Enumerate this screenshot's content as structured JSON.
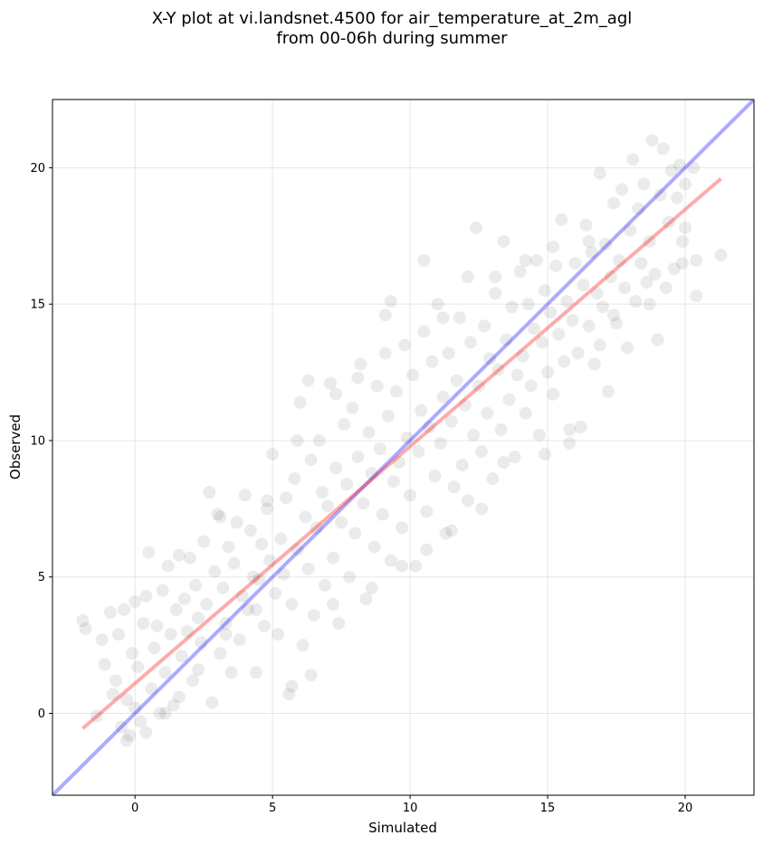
{
  "chart_data": {
    "type": "scatter",
    "title": "X-Y plot at vi.landsnet.4500 for air_temperature_at_2m_agl",
    "subtitle": "from 00-06h during summer",
    "xlabel": "Simulated",
    "ylabel": "Observed",
    "xlim": [
      -3.0,
      22.5
    ],
    "ylim": [
      -3.0,
      22.5
    ],
    "xticks": [
      0,
      5,
      10,
      15,
      20
    ],
    "yticks": [
      0,
      5,
      10,
      15,
      20
    ],
    "grid": true,
    "point_color": "#000000",
    "point_alpha": 0.08,
    "one_to_one_line": {
      "color": "#0000ff",
      "alpha": 0.33,
      "from": [
        -3.0,
        -3.0
      ],
      "to": [
        22.5,
        22.5
      ]
    },
    "regression_line": {
      "color": "#ff0000",
      "alpha": 0.33,
      "from": [
        -1.9,
        -0.55
      ],
      "to": [
        21.3,
        19.6
      ]
    },
    "points": [
      [
        -1.9,
        3.4
      ],
      [
        -1.8,
        3.1
      ],
      [
        -1.4,
        -0.1
      ],
      [
        -1.2,
        2.7
      ],
      [
        -1.1,
        1.8
      ],
      [
        -0.9,
        3.7
      ],
      [
        -0.8,
        0.7
      ],
      [
        -0.7,
        1.2
      ],
      [
        -0.6,
        2.9
      ],
      [
        -0.5,
        -0.5
      ],
      [
        -0.4,
        3.8
      ],
      [
        -0.3,
        0.5
      ],
      [
        -0.2,
        -0.8
      ],
      [
        -0.1,
        2.2
      ],
      [
        0.0,
        4.1
      ],
      [
        0.0,
        0.2
      ],
      [
        0.1,
        1.7
      ],
      [
        0.2,
        -0.3
      ],
      [
        0.3,
        3.3
      ],
      [
        0.4,
        4.3
      ],
      [
        0.5,
        5.9
      ],
      [
        0.6,
        0.9
      ],
      [
        0.7,
        2.4
      ],
      [
        0.8,
        3.2
      ],
      [
        0.9,
        0.0
      ],
      [
        1.0,
        4.5
      ],
      [
        1.1,
        1.5
      ],
      [
        1.2,
        5.4
      ],
      [
        1.3,
        2.9
      ],
      [
        1.4,
        0.3
      ],
      [
        1.5,
        3.8
      ],
      [
        1.6,
        5.8
      ],
      [
        1.7,
        2.1
      ],
      [
        1.8,
        4.2
      ],
      [
        1.9,
        3.0
      ],
      [
        2.0,
        5.7
      ],
      [
        2.1,
        1.2
      ],
      [
        2.2,
        4.7
      ],
      [
        2.3,
        3.5
      ],
      [
        2.4,
        2.6
      ],
      [
        2.5,
        6.3
      ],
      [
        2.6,
        4.0
      ],
      [
        2.7,
        8.1
      ],
      [
        2.8,
        0.4
      ],
      [
        2.9,
        5.2
      ],
      [
        3.0,
        7.3
      ],
      [
        3.1,
        2.2
      ],
      [
        3.2,
        4.6
      ],
      [
        3.3,
        3.3
      ],
      [
        3.4,
        6.1
      ],
      [
        3.5,
        1.5
      ],
      [
        3.6,
        5.5
      ],
      [
        3.7,
        7.0
      ],
      [
        3.8,
        2.7
      ],
      [
        3.9,
        4.3
      ],
      [
        4.0,
        8.0
      ],
      [
        4.1,
        3.8
      ],
      [
        4.2,
        6.7
      ],
      [
        4.3,
        5.0
      ],
      [
        4.4,
        1.5
      ],
      [
        4.5,
        4.9
      ],
      [
        4.6,
        6.2
      ],
      [
        4.7,
        3.2
      ],
      [
        4.8,
        7.5
      ],
      [
        4.9,
        5.6
      ],
      [
        5.0,
        9.5
      ],
      [
        5.1,
        4.4
      ],
      [
        5.2,
        2.9
      ],
      [
        5.3,
        6.4
      ],
      [
        5.4,
        5.1
      ],
      [
        5.5,
        7.9
      ],
      [
        5.6,
        0.7
      ],
      [
        5.7,
        4.0
      ],
      [
        5.8,
        8.6
      ],
      [
        5.9,
        6.0
      ],
      [
        6.0,
        11.4
      ],
      [
        6.1,
        2.5
      ],
      [
        6.2,
        7.2
      ],
      [
        6.3,
        5.3
      ],
      [
        6.4,
        9.3
      ],
      [
        6.5,
        3.6
      ],
      [
        6.6,
        6.8
      ],
      [
        6.7,
        10.0
      ],
      [
        6.8,
        8.1
      ],
      [
        6.9,
        4.7
      ],
      [
        7.0,
        7.6
      ],
      [
        7.1,
        12.1
      ],
      [
        7.2,
        5.7
      ],
      [
        7.3,
        9.0
      ],
      [
        7.4,
        3.3
      ],
      [
        7.5,
        7.0
      ],
      [
        7.6,
        10.6
      ],
      [
        7.7,
        8.4
      ],
      [
        7.8,
        5.0
      ],
      [
        7.9,
        11.2
      ],
      [
        8.0,
        6.6
      ],
      [
        8.1,
        9.4
      ],
      [
        8.2,
        12.8
      ],
      [
        8.3,
        7.7
      ],
      [
        8.4,
        4.2
      ],
      [
        8.5,
        10.3
      ],
      [
        8.6,
        8.8
      ],
      [
        8.7,
        6.1
      ],
      [
        8.8,
        12.0
      ],
      [
        8.9,
        9.7
      ],
      [
        9.0,
        7.3
      ],
      [
        9.1,
        14.6
      ],
      [
        9.2,
        10.9
      ],
      [
        9.3,
        5.6
      ],
      [
        9.4,
        8.5
      ],
      [
        9.5,
        11.8
      ],
      [
        9.6,
        9.2
      ],
      [
        9.7,
        6.8
      ],
      [
        9.8,
        13.5
      ],
      [
        9.9,
        10.1
      ],
      [
        10.0,
        8.0
      ],
      [
        10.1,
        12.4
      ],
      [
        10.2,
        5.4
      ],
      [
        10.3,
        9.6
      ],
      [
        10.4,
        11.1
      ],
      [
        10.5,
        14.0
      ],
      [
        10.6,
        7.4
      ],
      [
        10.7,
        10.5
      ],
      [
        10.8,
        12.9
      ],
      [
        10.9,
        8.7
      ],
      [
        11.0,
        15.0
      ],
      [
        11.1,
        9.9
      ],
      [
        11.2,
        11.6
      ],
      [
        11.3,
        6.6
      ],
      [
        11.4,
        13.2
      ],
      [
        11.5,
        10.7
      ],
      [
        11.6,
        8.3
      ],
      [
        11.7,
        12.2
      ],
      [
        11.8,
        14.5
      ],
      [
        11.9,
        9.1
      ],
      [
        12.0,
        11.3
      ],
      [
        12.1,
        7.8
      ],
      [
        12.2,
        13.6
      ],
      [
        12.3,
        10.2
      ],
      [
        12.4,
        17.8
      ],
      [
        12.5,
        12.0
      ],
      [
        12.6,
        9.6
      ],
      [
        12.7,
        14.2
      ],
      [
        12.8,
        11.0
      ],
      [
        12.9,
        13.0
      ],
      [
        13.0,
        8.6
      ],
      [
        13.1,
        15.4
      ],
      [
        13.2,
        12.6
      ],
      [
        13.3,
        10.4
      ],
      [
        13.4,
        17.3
      ],
      [
        13.5,
        13.7
      ],
      [
        13.6,
        11.5
      ],
      [
        13.7,
        14.9
      ],
      [
        13.8,
        9.4
      ],
      [
        13.9,
        12.4
      ],
      [
        14.0,
        16.2
      ],
      [
        14.1,
        13.1
      ],
      [
        14.2,
        11.0
      ],
      [
        14.3,
        15.0
      ],
      [
        14.4,
        12.0
      ],
      [
        14.5,
        14.1
      ],
      [
        14.6,
        16.6
      ],
      [
        14.7,
        10.2
      ],
      [
        14.8,
        13.6
      ],
      [
        14.9,
        15.5
      ],
      [
        15.0,
        12.5
      ],
      [
        15.1,
        14.7
      ],
      [
        15.2,
        11.7
      ],
      [
        15.3,
        16.4
      ],
      [
        15.4,
        13.9
      ],
      [
        15.5,
        18.1
      ],
      [
        15.6,
        12.9
      ],
      [
        15.7,
        15.1
      ],
      [
        15.8,
        9.9
      ],
      [
        15.9,
        14.4
      ],
      [
        16.0,
        16.5
      ],
      [
        16.1,
        13.2
      ],
      [
        16.2,
        10.5
      ],
      [
        16.3,
        15.7
      ],
      [
        16.4,
        17.9
      ],
      [
        16.5,
        14.2
      ],
      [
        16.6,
        16.9
      ],
      [
        16.7,
        12.8
      ],
      [
        16.8,
        15.4
      ],
      [
        16.9,
        19.8
      ],
      [
        17.0,
        14.9
      ],
      [
        17.1,
        17.2
      ],
      [
        17.2,
        11.8
      ],
      [
        17.3,
        16.0
      ],
      [
        17.4,
        18.7
      ],
      [
        17.5,
        14.3
      ],
      [
        17.6,
        16.6
      ],
      [
        17.7,
        19.2
      ],
      [
        17.8,
        15.6
      ],
      [
        17.9,
        13.4
      ],
      [
        18.0,
        17.7
      ],
      [
        18.1,
        20.3
      ],
      [
        18.2,
        15.1
      ],
      [
        18.3,
        18.5
      ],
      [
        18.4,
        16.5
      ],
      [
        18.5,
        19.4
      ],
      [
        18.6,
        15.8
      ],
      [
        18.7,
        17.3
      ],
      [
        18.8,
        21.0
      ],
      [
        18.9,
        16.1
      ],
      [
        19.0,
        13.7
      ],
      [
        19.1,
        19.0
      ],
      [
        19.2,
        20.7
      ],
      [
        19.3,
        15.6
      ],
      [
        19.4,
        18.0
      ],
      [
        19.5,
        19.9
      ],
      [
        19.6,
        16.3
      ],
      [
        19.7,
        18.9
      ],
      [
        19.8,
        20.1
      ],
      [
        19.9,
        17.3
      ],
      [
        20.0,
        19.4
      ],
      [
        20.3,
        20.0
      ],
      [
        20.4,
        15.3
      ],
      [
        20.4,
        16.6
      ],
      [
        21.3,
        16.8
      ],
      [
        19.9,
        16.5
      ],
      [
        20.0,
        17.8
      ],
      [
        -0.3,
        -1.0
      ],
      [
        0.4,
        -0.7
      ],
      [
        1.1,
        0.0
      ],
      [
        1.6,
        0.6
      ],
      [
        2.3,
        1.6
      ],
      [
        3.3,
        2.9
      ],
      [
        4.4,
        3.8
      ],
      [
        5.7,
        1.0
      ],
      [
        6.4,
        1.4
      ],
      [
        7.2,
        4.0
      ],
      [
        8.6,
        4.6
      ],
      [
        9.7,
        5.4
      ],
      [
        10.6,
        6.0
      ],
      [
        11.5,
        6.7
      ],
      [
        12.6,
        7.5
      ],
      [
        13.4,
        9.2
      ],
      [
        14.9,
        9.5
      ],
      [
        15.8,
        10.4
      ],
      [
        16.9,
        13.5
      ],
      [
        17.4,
        14.6
      ],
      [
        18.7,
        15.0
      ],
      [
        3.1,
        7.2
      ],
      [
        4.8,
        7.8
      ],
      [
        5.9,
        10.0
      ],
      [
        6.3,
        12.2
      ],
      [
        7.3,
        11.7
      ],
      [
        8.1,
        12.3
      ],
      [
        9.1,
        13.2
      ],
      [
        9.3,
        15.1
      ],
      [
        10.5,
        16.6
      ],
      [
        11.2,
        14.5
      ],
      [
        12.1,
        16.0
      ],
      [
        13.1,
        16.0
      ],
      [
        14.2,
        16.6
      ],
      [
        15.2,
        17.1
      ],
      [
        16.5,
        17.3
      ]
    ]
  }
}
